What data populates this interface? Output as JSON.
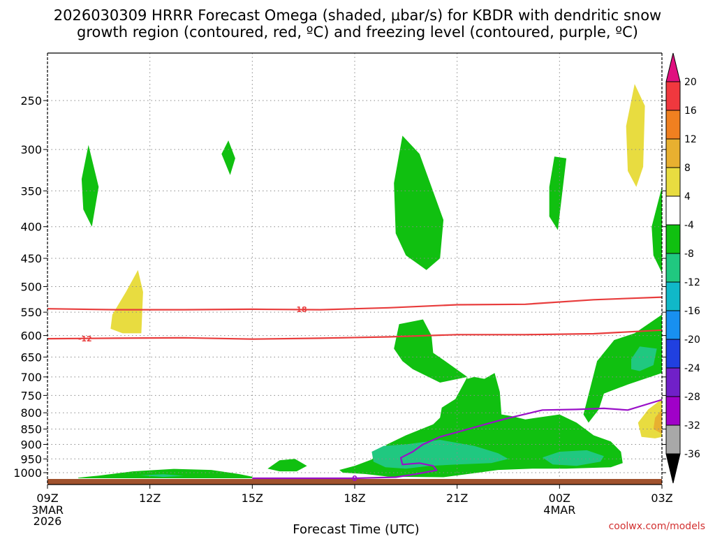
{
  "chart_data": {
    "type": "heatmap",
    "title": [
      "2026030309 HRRR Forecast Omega (shaded, μbar/s) for KBDR with dendritic snow",
      "growth region (contoured, red, ºC) and freezing level (contoured, purple, ºC)"
    ],
    "xlabel": "Forecast Time (UTC)",
    "credit": "coolwx.com/models",
    "x_range_hours": [
      0,
      18
    ],
    "y_range_hPa": [
      1030,
      200
    ],
    "y_ticks": [
      "250",
      "300",
      "350",
      "400",
      "450",
      "500",
      "550",
      "600",
      "650",
      "700",
      "750",
      "800",
      "850",
      "900",
      "950",
      "1000"
    ],
    "x_ticks": [
      {
        "hour": 0,
        "label": "09Z",
        "sub": [
          "3MAR",
          "2026"
        ]
      },
      {
        "hour": 3,
        "label": "12Z",
        "sub": []
      },
      {
        "hour": 6,
        "label": "15Z",
        "sub": []
      },
      {
        "hour": 9,
        "label": "18Z",
        "sub": []
      },
      {
        "hour": 12,
        "label": "21Z",
        "sub": []
      },
      {
        "hour": 15,
        "label": "00Z",
        "sub": [
          "4MAR"
        ]
      },
      {
        "hour": 18,
        "label": "03Z",
        "sub": []
      }
    ],
    "colorbar": {
      "labels": [
        "20",
        "16",
        "12",
        "8",
        "4",
        "-4",
        "-8",
        "-12",
        "-16",
        "-20",
        "-24",
        "-28",
        "-32",
        "-36"
      ],
      "colors": [
        "#e0107f",
        "#f0383e",
        "#f08020",
        "#e8b030",
        "#e8dc40",
        "#ffffff",
        "#10c010",
        "#20c880",
        "#10b8c8",
        "#1890f0",
        "#2040e0",
        "#7020c8",
        "#a000c8",
        "#a8a8a8",
        "#000000"
      ]
    },
    "regions": [
      {
        "color": "#10c010",
        "pts": [
          [
            1.0,
            335
          ],
          [
            1.2,
            295
          ],
          [
            1.5,
            345
          ],
          [
            1.3,
            400
          ],
          [
            1.05,
            375
          ]
        ]
      },
      {
        "color": "#10c010",
        "pts": [
          [
            5.1,
            305
          ],
          [
            5.3,
            290
          ],
          [
            5.5,
            310
          ],
          [
            5.35,
            330
          ]
        ]
      },
      {
        "color": "#10c010",
        "pts": [
          [
            10.15,
            340
          ],
          [
            10.4,
            285
          ],
          [
            10.9,
            305
          ],
          [
            11.6,
            390
          ],
          [
            11.5,
            450
          ],
          [
            11.1,
            470
          ],
          [
            10.5,
            445
          ],
          [
            10.2,
            410
          ]
        ]
      },
      {
        "color": "#10c010",
        "pts": [
          [
            14.7,
            345
          ],
          [
            14.85,
            308
          ],
          [
            15.2,
            310
          ],
          [
            14.95,
            405
          ],
          [
            14.7,
            385
          ]
        ]
      },
      {
        "color": "#e8dc40",
        "pts": [
          [
            16.95,
            275
          ],
          [
            17.2,
            235
          ],
          [
            17.5,
            255
          ],
          [
            17.45,
            320
          ],
          [
            17.25,
            345
          ],
          [
            17.0,
            325
          ]
        ]
      },
      {
        "color": "#10c010",
        "pts": [
          [
            18.0,
            345
          ],
          [
            17.7,
            400
          ],
          [
            17.75,
            445
          ],
          [
            18.0,
            475
          ]
        ]
      },
      {
        "color": "#e8dc40",
        "pts": [
          [
            1.9,
            555
          ],
          [
            2.3,
            510
          ],
          [
            2.65,
            470
          ],
          [
            2.8,
            510
          ],
          [
            2.75,
            595
          ],
          [
            2.2,
            595
          ],
          [
            1.85,
            585
          ]
        ]
      },
      {
        "color": "#e8dc40",
        "pts": [
          [
            18.0,
            760
          ],
          [
            17.6,
            790
          ],
          [
            17.3,
            830
          ],
          [
            17.4,
            875
          ],
          [
            17.8,
            880
          ],
          [
            18.0,
            875
          ]
        ]
      },
      {
        "color": "#e8b030",
        "pts": [
          [
            18.0,
            790
          ],
          [
            17.8,
            815
          ],
          [
            17.75,
            850
          ],
          [
            18.0,
            865
          ]
        ]
      },
      {
        "color": "#10c010",
        "pts": [
          [
            0.9,
            1019
          ],
          [
            1.5,
            1011
          ],
          [
            2.5,
            995
          ],
          [
            3.7,
            986
          ],
          [
            4.8,
            990
          ],
          [
            5.6,
            1005
          ],
          [
            6.0,
            1015
          ],
          [
            6.0,
            1021
          ],
          [
            0.9,
            1021
          ]
        ]
      },
      {
        "color": "#20c880",
        "pts": [
          [
            2.7,
            1010
          ],
          [
            3.4,
            1006
          ],
          [
            4.0,
            1012
          ],
          [
            3.4,
            1016
          ]
        ]
      },
      {
        "color": "#10c010",
        "pts": [
          [
            6.45,
            985
          ],
          [
            6.8,
            955
          ],
          [
            7.25,
            950
          ],
          [
            7.6,
            975
          ],
          [
            7.3,
            995
          ],
          [
            6.8,
            995
          ]
        ]
      },
      {
        "color": "#10c010",
        "pts": [
          [
            8.55,
            990
          ],
          [
            9.0,
            975
          ],
          [
            9.5,
            952
          ],
          [
            9.95,
            900
          ],
          [
            10.5,
            870
          ],
          [
            11.3,
            835
          ],
          [
            11.5,
            815
          ],
          [
            11.55,
            785
          ],
          [
            11.95,
            760
          ],
          [
            12.3,
            700
          ],
          [
            12.3,
            705
          ],
          [
            12.5,
            700
          ],
          [
            12.8,
            705
          ],
          [
            13.1,
            690
          ],
          [
            13.25,
            740
          ],
          [
            13.3,
            805
          ],
          [
            13.6,
            810
          ],
          [
            14.0,
            820
          ],
          [
            15.0,
            805
          ],
          [
            15.5,
            830
          ],
          [
            16.0,
            870
          ],
          [
            16.5,
            890
          ],
          [
            16.8,
            925
          ],
          [
            16.85,
            965
          ],
          [
            16.5,
            980
          ],
          [
            15.2,
            985
          ],
          [
            14.2,
            985
          ],
          [
            13.2,
            990
          ],
          [
            12.5,
            1002
          ],
          [
            11.6,
            1017
          ],
          [
            10.0,
            1015
          ],
          [
            9.3,
            1005
          ],
          [
            8.65,
            1000
          ]
        ]
      },
      {
        "color": "#10c010",
        "pts": [
          [
            10.15,
            630
          ],
          [
            10.3,
            575
          ],
          [
            11.0,
            565
          ],
          [
            11.25,
            600
          ],
          [
            11.3,
            640
          ],
          [
            11.65,
            660
          ],
          [
            12.3,
            700
          ],
          [
            11.5,
            715
          ],
          [
            10.7,
            680
          ],
          [
            10.4,
            660
          ]
        ]
      },
      {
        "color": "#10c010",
        "pts": [
          [
            15.7,
            805
          ],
          [
            16.1,
            660
          ],
          [
            16.6,
            610
          ],
          [
            17.2,
            595
          ],
          [
            18.0,
            555
          ],
          [
            18.0,
            690
          ],
          [
            17.0,
            720
          ],
          [
            16.3,
            745
          ],
          [
            16.15,
            790
          ],
          [
            15.85,
            830
          ]
        ]
      },
      {
        "color": "#20c880",
        "pts": [
          [
            17.1,
            655
          ],
          [
            17.35,
            625
          ],
          [
            17.85,
            630
          ],
          [
            17.75,
            670
          ],
          [
            17.35,
            685
          ],
          [
            17.1,
            680
          ]
        ]
      },
      {
        "color": "#20c880",
        "pts": [
          [
            9.5,
            925
          ],
          [
            9.85,
            905
          ],
          [
            10.5,
            900
          ],
          [
            11.5,
            885
          ],
          [
            12.5,
            905
          ],
          [
            13.2,
            930
          ],
          [
            13.5,
            950
          ],
          [
            13.0,
            965
          ],
          [
            12.0,
            970
          ],
          [
            11.2,
            975
          ],
          [
            10.5,
            985
          ],
          [
            9.9,
            980
          ],
          [
            9.55,
            960
          ]
        ]
      },
      {
        "color": "#20c880",
        "pts": [
          [
            14.5,
            945
          ],
          [
            15.0,
            925
          ],
          [
            15.8,
            920
          ],
          [
            16.3,
            940
          ],
          [
            16.2,
            960
          ],
          [
            15.5,
            975
          ],
          [
            14.8,
            970
          ]
        ]
      }
    ],
    "contours": [
      {
        "name": "-18C",
        "color": "#e83c3c",
        "value": "-18",
        "label_at": [
          7.4,
          544
        ],
        "pts": [
          [
            0,
            543
          ],
          [
            2.0,
            545
          ],
          [
            4.0,
            545
          ],
          [
            6.0,
            544
          ],
          [
            8.0,
            545
          ],
          [
            10.0,
            541
          ],
          [
            12.0,
            535
          ],
          [
            14.0,
            534
          ],
          [
            16.0,
            525
          ],
          [
            18.0,
            520
          ]
        ]
      },
      {
        "name": "-12C",
        "color": "#e83c3c",
        "value": "-12",
        "label_at": [
          1.1,
          607
        ],
        "pts": [
          [
            0,
            607
          ],
          [
            2.0,
            606
          ],
          [
            4.0,
            605
          ],
          [
            6.0,
            608
          ],
          [
            8.0,
            606
          ],
          [
            10.0,
            603
          ],
          [
            12.0,
            598
          ],
          [
            14.0,
            598
          ],
          [
            16.0,
            596
          ],
          [
            18.0,
            588
          ]
        ]
      },
      {
        "name": "freezing-level",
        "color": "#9a10c8",
        "value": "0",
        "label_at": [
          9.0,
          1021
        ],
        "pts": [
          [
            6.0,
            1021
          ],
          [
            7.8,
            1021
          ],
          [
            9.0,
            1021
          ],
          [
            10.2,
            1017
          ],
          [
            10.8,
            1005
          ],
          [
            11.4,
            991
          ],
          [
            11.3,
            975
          ],
          [
            10.9,
            965
          ],
          [
            10.4,
            970
          ],
          [
            10.35,
            946
          ],
          [
            10.7,
            925
          ],
          [
            11.0,
            900
          ],
          [
            11.5,
            875
          ],
          [
            12.0,
            860
          ],
          [
            12.8,
            836
          ],
          [
            13.5,
            816
          ],
          [
            14.5,
            792
          ],
          [
            15.5,
            790
          ],
          [
            16.3,
            787
          ],
          [
            17.0,
            792
          ],
          [
            18.0,
            762
          ]
        ]
      }
    ]
  }
}
